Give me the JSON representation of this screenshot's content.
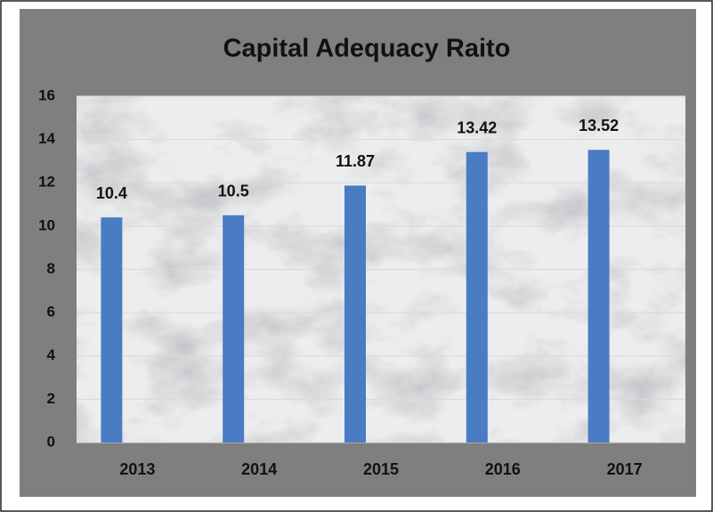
{
  "chart_data": {
    "type": "bar",
    "title": "Capital Adequacy Raito",
    "categories": [
      "2013",
      "2014",
      "2015",
      "2016",
      "2017"
    ],
    "values": [
      10.4,
      10.5,
      11.87,
      13.42,
      13.52
    ],
    "color": "#4a7cc4",
    "ylim": [
      0,
      16
    ],
    "yticks": [
      0,
      2,
      4,
      6,
      8,
      10,
      12,
      14,
      16
    ],
    "grid": true
  }
}
